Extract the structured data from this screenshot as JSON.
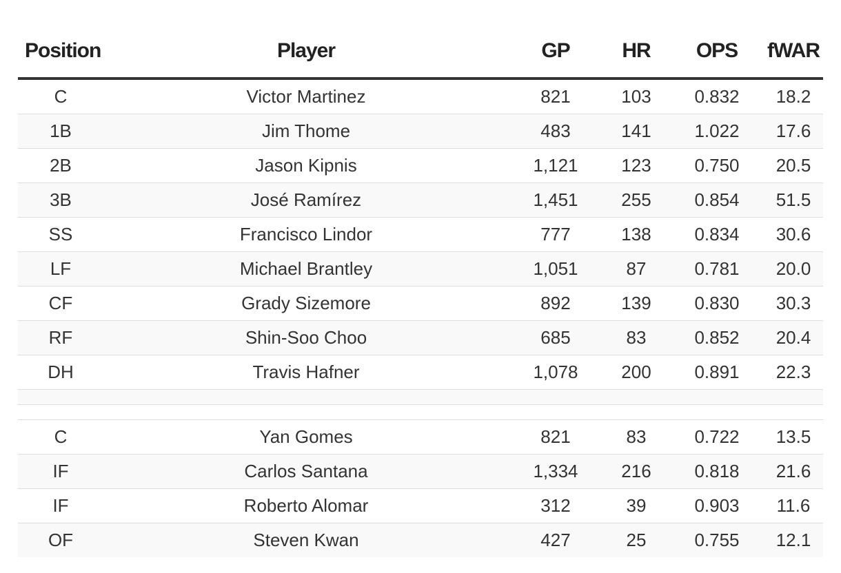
{
  "chart_data": {
    "type": "table",
    "columns": [
      "Position",
      "Player",
      "GP",
      "HR",
      "OPS",
      "fWAR"
    ],
    "groups": [
      {
        "rows": [
          [
            "C",
            "Victor Martinez",
            "821",
            "103",
            "0.832",
            "18.2"
          ],
          [
            "1B",
            "Jim Thome",
            "483",
            "141",
            "1.022",
            "17.6"
          ],
          [
            "2B",
            "Jason Kipnis",
            "1,121",
            "123",
            "0.750",
            "20.5"
          ],
          [
            "3B",
            "José Ramírez",
            "1,451",
            "255",
            "0.854",
            "51.5"
          ],
          [
            "SS",
            "Francisco Lindor",
            "777",
            "138",
            "0.834",
            "30.6"
          ],
          [
            "LF",
            "Michael Brantley",
            "1,051",
            "87",
            "0.781",
            "20.0"
          ],
          [
            "CF",
            "Grady Sizemore",
            "892",
            "139",
            "0.830",
            "30.3"
          ],
          [
            "RF",
            "Shin-Soo Choo",
            "685",
            "83",
            "0.852",
            "20.4"
          ],
          [
            "DH",
            "Travis Hafner",
            "1,078",
            "200",
            "0.891",
            "22.3"
          ]
        ]
      },
      {
        "rows": [
          [
            "C",
            "Yan Gomes",
            "821",
            "83",
            "0.722",
            "13.5"
          ],
          [
            "IF",
            "Carlos Santana",
            "1,334",
            "216",
            "0.818",
            "21.6"
          ],
          [
            "IF",
            "Roberto Alomar",
            "312",
            "39",
            "0.903",
            "11.6"
          ],
          [
            "OF",
            "Steven Kwan",
            "427",
            "25",
            "0.755",
            "12.1"
          ]
        ]
      }
    ]
  }
}
